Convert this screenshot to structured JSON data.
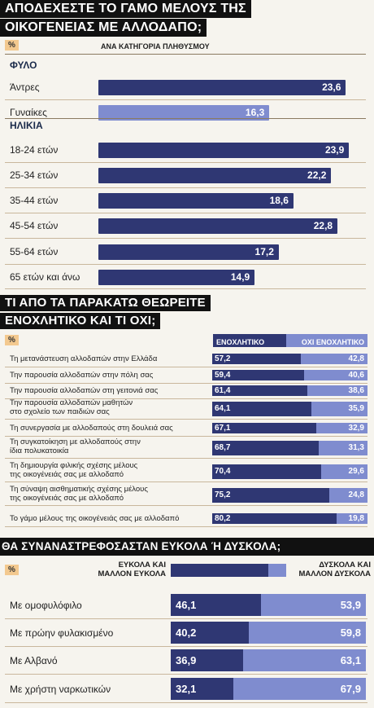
{
  "colors": {
    "dark_bar": "#2f3773",
    "light_bar": "#7f8ccf",
    "header_bg": "#111111",
    "tag_bg": "#f3c98f"
  },
  "section1": {
    "title_line1": "ΑΠΟΔΕΧΕΣΤΕ ΤΟ ΓΑΜΟ ΜΕΛΟΥΣ ΤΗΣ",
    "title_line2": "ΟΙΚΟΓΕΝΕΙΑΣ ΜΕ ΑΛΛΟΔΑΠΟ;",
    "pct_tag": "%",
    "subtitle": "ΑΝΑ ΚΑΤΗΓΟΡΙΑ ΠΛΗΘΥΣΜΟΥ",
    "group_gender": "ΦΥΛΟ",
    "group_age": "ΗΛΙΚΙΑ"
  },
  "section2": {
    "title_line1": "ΤΙ ΑΠΟ ΤΑ ΠΑΡΑΚΑΤΩ ΘΕΩΡΕΙΤΕ",
    "title_line2": "ΕΝΟΧΛΗΤΙΚΟ ΚΑΙ ΤΙ ΟΧΙ;",
    "pct_tag": "%",
    "legend_annoying": "ΕΝΟΧΛΗΤΙΚΟ",
    "legend_not_annoying": "ΟΧΙ ΕΝΟΧΛΗΤΙΚΟ"
  },
  "section3": {
    "title": "ΘΑ ΣΥΝΑΝΑΣΤΡΕΦΟΣΑΣΤΑΝ ΕΥΚΟΛΑ Ή ΔΥΣΚΟΛΑ;",
    "pct_tag": "%",
    "legend_easy_l1": "ΕΥΚΟΛΑ ΚΑΙ",
    "legend_easy_l2": "ΜΑΛΛΟΝ ΕΥΚΟΛΑ",
    "legend_hard_l1": "ΔΥΣΚΟΛΑ ΚΑΙ",
    "legend_hard_l2": "ΜΑΛΛΟΝ ΔΥΣΚΟΛΑ"
  },
  "chart_data": [
    {
      "type": "bar",
      "title": "ΑΠΟΔΕΧΕΣΤΕ ΤΟ ΓΑΜΟ ΜΕΛΟΥΣ ΤΗΣ ΟΙΚΟΓΕΝΕΙΑΣ ΜΕ ΑΛΛΟΔΑΠΟ;",
      "subtitle": "ΑΝΑ ΚΑΤΗΓΟΡΙΑ ΠΛΗΘΥΣΜΟΥ",
      "unit": "%",
      "xmax": 25,
      "items": [
        {
          "label": "Άντρες",
          "value": 23.6,
          "display": "23,6",
          "group": "gender",
          "shade": "dark"
        },
        {
          "label": "Γυναίκες",
          "value": 16.3,
          "display": "16,3",
          "group": "gender",
          "shade": "light"
        },
        {
          "label": "18-24 ετών",
          "value": 23.9,
          "display": "23,9",
          "group": "age",
          "shade": "dark"
        },
        {
          "label": "25-34 ετών",
          "value": 22.2,
          "display": "22,2",
          "group": "age",
          "shade": "dark"
        },
        {
          "label": "35-44 ετών",
          "value": 18.6,
          "display": "18,6",
          "group": "age",
          "shade": "dark"
        },
        {
          "label": "45-54 ετών",
          "value": 22.8,
          "display": "22,8",
          "group": "age",
          "shade": "dark"
        },
        {
          "label": "55-64 ετών",
          "value": 17.2,
          "display": "17,2",
          "group": "age",
          "shade": "dark"
        },
        {
          "label": "65 ετών και άνω",
          "value": 14.9,
          "display": "14,9",
          "group": "age",
          "shade": "dark"
        }
      ]
    },
    {
      "type": "bar",
      "stacked": true,
      "title": "ΤΙ ΑΠΟ ΤΑ ΠΑΡΑΚΑΤΩ ΘΕΩΡΕΙΤΕ ΕΝΟΧΛΗΤΙΚΟ ΚΑΙ ΤΙ ΟΧΙ;",
      "unit": "%",
      "series": [
        {
          "name": "ΕΝΟΧΛΗΤΙΚΟ",
          "values": [
            57.2,
            59.4,
            61.4,
            64.1,
            67.1,
            68.7,
            70.4,
            75.2,
            80.2
          ],
          "display": [
            "57,2",
            "59,4",
            "61,4",
            "64,1",
            "67,1",
            "68,7",
            "70,4",
            "75,2",
            "80,2"
          ]
        },
        {
          "name": "ΟΧΙ ΕΝΟΧΛΗΤΙΚΟ",
          "values": [
            42.8,
            40.6,
            38.6,
            35.9,
            32.9,
            31.3,
            29.6,
            24.8,
            19.8
          ],
          "display": [
            "42,8",
            "40,6",
            "38,6",
            "35,9",
            "32,9",
            "31,3",
            "29,6",
            "24,8",
            "19,8"
          ]
        }
      ],
      "categories": [
        [
          "Τη μετανάστευση αλλοδαπών στην Ελλάδα"
        ],
        [
          "Την παρουσία αλλοδαπών στην πόλη σας"
        ],
        [
          "Την παρουσία αλλοδαπών στη γειτονιά σας"
        ],
        [
          "Την παρουσία αλλοδαπών μαθητών",
          "στο σχολείο των παιδιών σας"
        ],
        [
          "Τη συνεργασία με αλλοδαπούς στη δουλειά σας"
        ],
        [
          "Τη συγκατοίκηση με αλλοδαπούς στην",
          "ίδια πολυκατοικία"
        ],
        [
          "Τη δημιουργία φιλικής σχέσης μέλους",
          "της οικογένειάς σας με αλλοδαπό"
        ],
        [
          "Τη σύναψη αισθηματικής σχέσης μέλους",
          "της οικογένειάς σας με αλλοδαπό"
        ],
        [
          "Το γάμο μέλους της οικογένειάς σας με αλλοδαπό"
        ]
      ]
    },
    {
      "type": "bar",
      "stacked": true,
      "title": "ΘΑ ΣΥΝΑΝΑΣΤΡΕΦΟΣΑΣΤΑΝ ΕΥΚΟΛΑ Ή ΔΥΣΚΟΛΑ;",
      "unit": "%",
      "categories": [
        "Με ομοφυλόφιλο",
        "Με πρώην φυλακισμένο",
        "Με Αλβανό",
        "Με χρήστη ναρκωτικών"
      ],
      "series": [
        {
          "name": "ΕΥΚΟΛΑ ΚΑΙ ΜΑΛΛΟΝ ΕΥΚΟΛΑ",
          "values": [
            46.1,
            40.2,
            36.9,
            32.1
          ],
          "display": [
            "46,1",
            "40,2",
            "36,9",
            "32,1"
          ]
        },
        {
          "name": "ΔΥΣΚΟΛΑ ΚΑΙ ΜΑΛΛΟΝ ΔΥΣΚΟΛΑ",
          "values": [
            53.9,
            59.8,
            63.1,
            67.9
          ],
          "display": [
            "53,9",
            "59,8",
            "63,1",
            "67,9"
          ]
        }
      ]
    }
  ]
}
